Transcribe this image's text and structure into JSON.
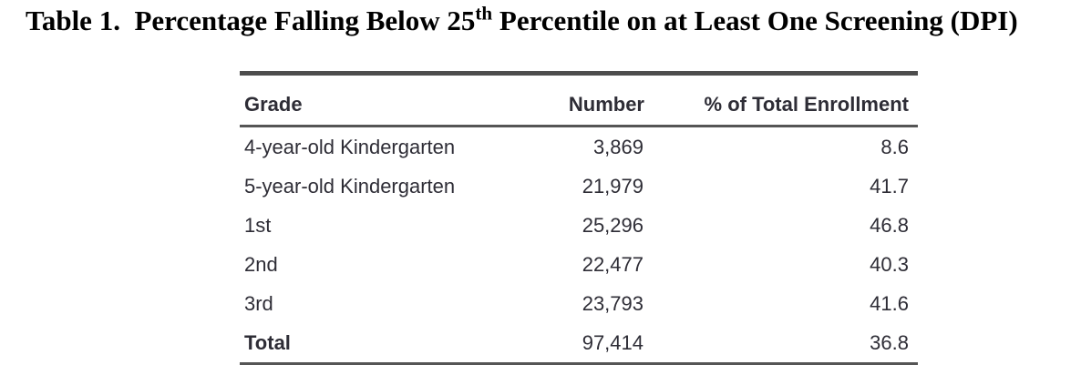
{
  "title": {
    "prefix": "Table 1.  Percentage Falling Below 25",
    "superscript": "th",
    "suffix": " Percentile on at Least One Screening (DPI)"
  },
  "table": {
    "columns": {
      "grade": "Grade",
      "number": "Number",
      "pct": "% of Total Enrollment"
    },
    "rows": [
      {
        "grade": "4-year-old Kindergarten",
        "number": "3,869",
        "pct": "8.6"
      },
      {
        "grade": "5-year-old Kindergarten",
        "number": "21,979",
        "pct": "41.7"
      },
      {
        "grade": "1st",
        "number": "25,296",
        "pct": "46.8"
      },
      {
        "grade": "2nd",
        "number": "22,477",
        "pct": "40.3"
      },
      {
        "grade": "3rd",
        "number": "23,793",
        "pct": "41.6"
      },
      {
        "grade": "Total",
        "number": "97,414",
        "pct": "36.8"
      }
    ]
  },
  "colors": {
    "title_text": "#000000",
    "table_text": "#2e2d36",
    "rule": "#555555",
    "background": "#ffffff"
  }
}
